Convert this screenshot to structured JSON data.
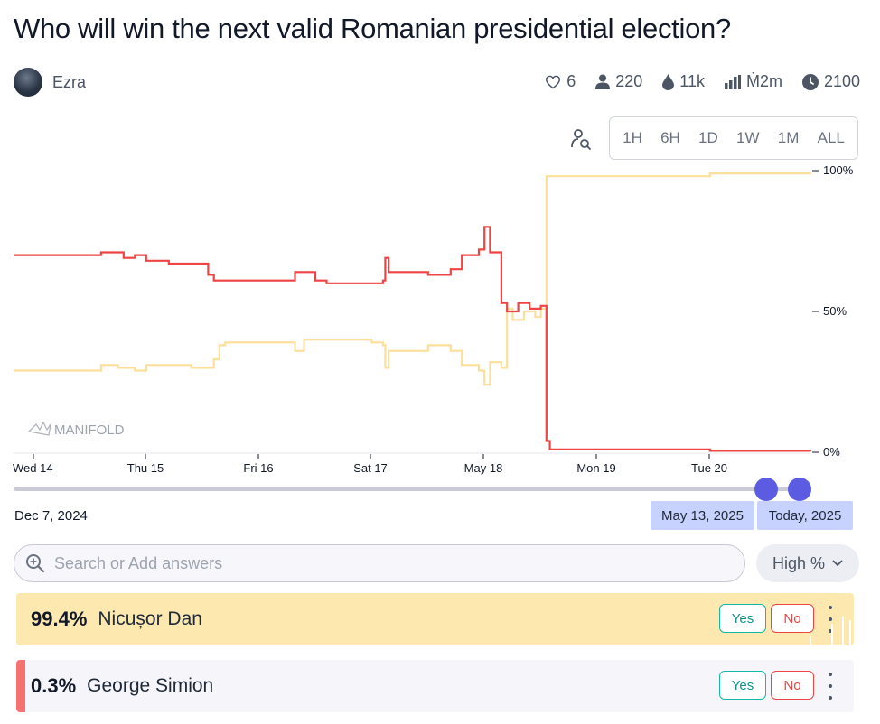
{
  "question": {
    "title": "Who will win the next valid Romanian presidential election?"
  },
  "creator": {
    "name": "Ezra"
  },
  "stats": [
    {
      "icon": "heart-icon",
      "value": "6"
    },
    {
      "icon": "traders-icon",
      "value": "220"
    },
    {
      "icon": "liquidity-icon",
      "value": "11k"
    },
    {
      "icon": "volume-icon",
      "value": "Ṁ2m"
    },
    {
      "icon": "clock-icon",
      "value": "2100"
    }
  ],
  "time_ranges": [
    "1H",
    "6H",
    "1D",
    "1W",
    "1M",
    "ALL"
  ],
  "watermark": "MANIFOLD",
  "chart_data": {
    "type": "line",
    "x_ticks": [
      "Wed 14",
      "Thu 15",
      "Fri 16",
      "Sat 17",
      "May 18",
      "Mon 19",
      "Tue 20"
    ],
    "y_ticks": [
      "100%",
      "50%",
      "0%"
    ],
    "ylim": [
      0,
      100
    ],
    "series": [
      {
        "name": "Nicușor Dan",
        "color": "#fcdf9a",
        "points": [
          [
            0,
            29
          ],
          [
            0.5,
            29
          ],
          [
            0.6,
            31
          ],
          [
            0.75,
            30
          ],
          [
            0.9,
            29
          ],
          [
            1.0,
            31
          ],
          [
            1.2,
            31
          ],
          [
            1.4,
            30
          ],
          [
            1.6,
            33
          ],
          [
            1.65,
            38
          ],
          [
            1.7,
            39
          ],
          [
            2.0,
            39
          ],
          [
            2.3,
            39
          ],
          [
            2.32,
            36
          ],
          [
            2.4,
            40
          ],
          [
            2.7,
            40
          ],
          [
            3.0,
            39
          ],
          [
            3.1,
            38
          ],
          [
            3.12,
            30
          ],
          [
            3.15,
            36
          ],
          [
            3.3,
            36
          ],
          [
            3.5,
            38
          ],
          [
            3.7,
            36
          ],
          [
            3.8,
            31
          ],
          [
            3.95,
            29
          ],
          [
            4.0,
            24
          ],
          [
            4.05,
            32
          ],
          [
            4.15,
            30
          ],
          [
            4.2,
            51
          ],
          [
            4.25,
            47
          ],
          [
            4.35,
            50
          ],
          [
            4.45,
            48
          ],
          [
            4.5,
            51
          ],
          [
            4.55,
            98
          ],
          [
            4.7,
            98
          ],
          [
            5.0,
            98
          ],
          [
            6.0,
            99
          ],
          [
            7.0,
            99.4
          ]
        ]
      },
      {
        "name": "George Simion",
        "color": "#ef4444",
        "points": [
          [
            0,
            70
          ],
          [
            0.5,
            70
          ],
          [
            0.6,
            71
          ],
          [
            0.8,
            69
          ],
          [
            0.9,
            70
          ],
          [
            1.0,
            68
          ],
          [
            1.2,
            67
          ],
          [
            1.4,
            67
          ],
          [
            1.55,
            63
          ],
          [
            1.6,
            61
          ],
          [
            1.8,
            61
          ],
          [
            2.1,
            61
          ],
          [
            2.3,
            61
          ],
          [
            2.32,
            64
          ],
          [
            2.5,
            61
          ],
          [
            2.6,
            60
          ],
          [
            3.0,
            60
          ],
          [
            3.1,
            61
          ],
          [
            3.12,
            69
          ],
          [
            3.15,
            64
          ],
          [
            3.3,
            64
          ],
          [
            3.5,
            63
          ],
          [
            3.7,
            65
          ],
          [
            3.8,
            70
          ],
          [
            3.95,
            72
          ],
          [
            4.0,
            80
          ],
          [
            4.05,
            71
          ],
          [
            4.15,
            53
          ],
          [
            4.2,
            50
          ],
          [
            4.3,
            53
          ],
          [
            4.4,
            51
          ],
          [
            4.5,
            52
          ],
          [
            4.55,
            4
          ],
          [
            4.58,
            1
          ],
          [
            4.7,
            1
          ],
          [
            5.0,
            1
          ],
          [
            6.0,
            0.5
          ],
          [
            7.0,
            0.3
          ]
        ]
      }
    ]
  },
  "slider": {
    "start_label": "Dec 7, 2024",
    "range_start": "May 13, 2025",
    "range_end": "Today, 2025"
  },
  "search": {
    "placeholder": "Search or Add answers"
  },
  "sort": {
    "label": "High %"
  },
  "answers": [
    {
      "pct": "99.4%",
      "name": "Nicușor Dan",
      "bg": "#fde8b0",
      "yes": "Yes",
      "no": "No"
    },
    {
      "pct": "0.3%",
      "name": "George Simion",
      "bg": "#f6f6fa",
      "yes": "Yes",
      "no": "No",
      "accent": "#f87171"
    }
  ]
}
